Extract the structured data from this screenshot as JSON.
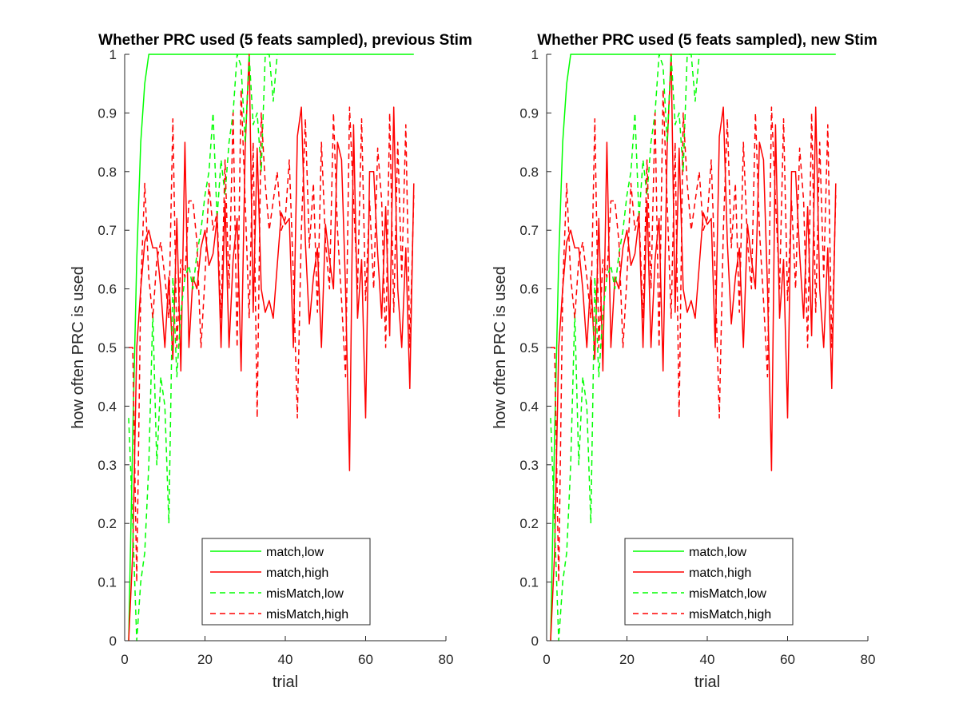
{
  "figure": {
    "background": "#ffffff"
  },
  "chart_data": [
    {
      "type": "line",
      "title": "Whether PRC used (5 feats sampled), previous Stim",
      "xlabel": "trial",
      "ylabel": "how often PRC is used",
      "xlim": [
        0,
        80
      ],
      "ylim": [
        0,
        1
      ],
      "xticks": [
        "0",
        "20",
        "40",
        "60",
        "80"
      ],
      "yticks": [
        "0",
        "0.1",
        "0.2",
        "0.3",
        "0.4",
        "0.5",
        "0.6",
        "0.7",
        "0.8",
        "0.9",
        "1"
      ],
      "grid": false,
      "legend_position": "bottom-center",
      "series": [
        {
          "name": "match,low",
          "color": "#00ff00",
          "style": "solid",
          "x": [
            1,
            2,
            3,
            4,
            5,
            6,
            10,
            20,
            30,
            40,
            50,
            60,
            72
          ],
          "y": [
            0,
            0.35,
            0.65,
            0.85,
            0.95,
            1,
            1,
            1,
            1,
            1,
            1,
            1,
            1
          ]
        },
        {
          "name": "match,high",
          "color": "#ff0000",
          "style": "solid",
          "x": [
            1,
            2,
            3,
            4,
            5,
            6,
            7,
            8,
            9,
            10,
            11,
            12,
            13,
            14,
            15,
            16,
            17,
            18,
            19,
            20,
            21,
            22,
            23,
            24,
            25,
            26,
            27,
            28,
            29,
            30,
            31,
            32,
            33,
            34,
            35,
            36,
            37,
            38,
            39,
            40,
            41,
            42,
            43,
            44,
            45,
            46,
            47,
            48,
            49,
            50,
            51,
            52,
            53,
            54,
            55,
            56,
            57,
            58,
            59,
            60,
            61,
            62,
            63,
            64,
            65,
            66,
            67,
            68,
            69,
            70,
            71,
            72
          ],
          "y": [
            0,
            0.15,
            0.5,
            0.6,
            0.68,
            0.7,
            0.67,
            0.67,
            0.6,
            0.5,
            0.62,
            0.48,
            0.72,
            0.46,
            0.85,
            0.5,
            0.62,
            0.6,
            0.67,
            0.7,
            0.64,
            0.66,
            0.72,
            0.5,
            0.75,
            0.5,
            0.65,
            0.72,
            0.46,
            0.84,
            1,
            0.56,
            0.84,
            0.6,
            0.56,
            0.58,
            0.55,
            0.64,
            0.73,
            0.71,
            0.72,
            0.5,
            0.86,
            0.91,
            0.68,
            0.54,
            0.62,
            0.67,
            0.5,
            0.71,
            0.65,
            0.6,
            0.85,
            0.82,
            0.6,
            0.29,
            0.88,
            0.55,
            0.65,
            0.38,
            0.8,
            0.8,
            0.66,
            0.55,
            0.74,
            0.52,
            0.91,
            0.6,
            0.5,
            0.67,
            0.43,
            0.78
          ]
        },
        {
          "name": "misMatch,low",
          "color": "#00ff00",
          "style": "dashed",
          "x": [
            1,
            2,
            3,
            4,
            5,
            6,
            7,
            8,
            9,
            10,
            11,
            12,
            13,
            14,
            15,
            16,
            17,
            18,
            19,
            20,
            21,
            22,
            23,
            24,
            25,
            26,
            27,
            28,
            29,
            30,
            31,
            32,
            33,
            34,
            35,
            36,
            37,
            38
          ],
          "y": [
            0.38,
            0.2,
            0,
            0.1,
            0.15,
            0.3,
            0.56,
            0.3,
            0.45,
            0.4,
            0.2,
            0.62,
            0.45,
            0.56,
            0.62,
            0.64,
            0.6,
            0.66,
            0.7,
            0.76,
            0.8,
            0.9,
            0.72,
            0.82,
            0.76,
            0.85,
            0.9,
            1,
            0.98,
            0.85,
            1,
            0.88,
            0.9,
            0.8,
            1,
            1,
            0.92,
            1
          ]
        },
        {
          "name": "misMatch,high",
          "color": "#ff0000",
          "style": "dashed",
          "x": [
            1,
            2,
            3,
            4,
            5,
            6,
            7,
            8,
            9,
            10,
            11,
            12,
            13,
            14,
            15,
            16,
            17,
            18,
            19,
            20,
            21,
            22,
            23,
            24,
            25,
            26,
            27,
            28,
            29,
            30,
            31,
            32,
            33,
            34,
            35,
            36,
            37,
            38,
            39,
            40,
            41,
            42,
            43,
            44,
            45,
            46,
            47,
            48,
            49,
            50,
            51,
            52,
            53,
            54,
            55,
            56,
            57,
            58,
            59,
            60,
            61,
            62,
            63,
            64,
            65,
            66,
            67,
            68,
            69,
            70,
            71,
            72
          ],
          "y": [
            0.5,
            0.5,
            0.1,
            0.6,
            0.78,
            0.62,
            0.55,
            0.65,
            0.68,
            0.62,
            0.55,
            0.89,
            0.5,
            0.65,
            0.62,
            0.75,
            0.75,
            0.68,
            0.5,
            0.62,
            0.78,
            0.7,
            0.73,
            0.55,
            0.82,
            0.6,
            0.9,
            0.5,
            0.94,
            0.75,
            0.55,
            0.85,
            0.38,
            0.9,
            0.78,
            0.7,
            0.75,
            0.8,
            0.7,
            0.72,
            0.82,
            0.62,
            0.38,
            0.7,
            0.89,
            0.67,
            0.78,
            0.56,
            0.85,
            0.68,
            0.6,
            0.9,
            0.7,
            0.58,
            0.45,
            0.91,
            0.75,
            0.6,
            0.89,
            0.58,
            0.75,
            0.6,
            0.84,
            0.75,
            0.5,
            0.9,
            0.56,
            0.85,
            0.62,
            0.88,
            0.5,
            0.76
          ]
        }
      ]
    },
    {
      "type": "line",
      "title": "Whether PRC used (5 feats sampled), new Stim",
      "xlabel": "trial",
      "ylabel": "how often PRC is used",
      "xlim": [
        0,
        80
      ],
      "ylim": [
        0,
        1
      ],
      "xticks": [
        "0",
        "20",
        "40",
        "60",
        "80"
      ],
      "yticks": [
        "0",
        "0.1",
        "0.2",
        "0.3",
        "0.4",
        "0.5",
        "0.6",
        "0.7",
        "0.8",
        "0.9",
        "1"
      ],
      "grid": false,
      "legend_position": "bottom-center",
      "series": [
        {
          "name": "match,low",
          "color": "#00ff00",
          "style": "solid",
          "x": [
            1,
            2,
            3,
            4,
            5,
            6,
            10,
            20,
            30,
            40,
            50,
            60,
            72
          ],
          "y": [
            0,
            0.35,
            0.65,
            0.85,
            0.95,
            1,
            1,
            1,
            1,
            1,
            1,
            1,
            1
          ]
        },
        {
          "name": "match,high",
          "color": "#ff0000",
          "style": "solid",
          "x": [
            1,
            2,
            3,
            4,
            5,
            6,
            7,
            8,
            9,
            10,
            11,
            12,
            13,
            14,
            15,
            16,
            17,
            18,
            19,
            20,
            21,
            22,
            23,
            24,
            25,
            26,
            27,
            28,
            29,
            30,
            31,
            32,
            33,
            34,
            35,
            36,
            37,
            38,
            39,
            40,
            41,
            42,
            43,
            44,
            45,
            46,
            47,
            48,
            49,
            50,
            51,
            52,
            53,
            54,
            55,
            56,
            57,
            58,
            59,
            60,
            61,
            62,
            63,
            64,
            65,
            66,
            67,
            68,
            69,
            70,
            71,
            72
          ],
          "y": [
            0,
            0.15,
            0.5,
            0.6,
            0.68,
            0.7,
            0.67,
            0.67,
            0.6,
            0.5,
            0.62,
            0.48,
            0.72,
            0.46,
            0.85,
            0.5,
            0.62,
            0.6,
            0.67,
            0.7,
            0.64,
            0.66,
            0.72,
            0.5,
            0.75,
            0.5,
            0.65,
            0.72,
            0.46,
            0.84,
            1,
            0.56,
            0.84,
            0.6,
            0.56,
            0.58,
            0.55,
            0.64,
            0.73,
            0.71,
            0.72,
            0.5,
            0.86,
            0.91,
            0.68,
            0.54,
            0.62,
            0.67,
            0.5,
            0.71,
            0.65,
            0.6,
            0.85,
            0.82,
            0.6,
            0.29,
            0.88,
            0.55,
            0.65,
            0.38,
            0.8,
            0.8,
            0.66,
            0.55,
            0.74,
            0.52,
            0.91,
            0.6,
            0.5,
            0.67,
            0.43,
            0.78
          ]
        },
        {
          "name": "misMatch,low",
          "color": "#00ff00",
          "style": "dashed",
          "x": [
            1,
            2,
            3,
            4,
            5,
            6,
            7,
            8,
            9,
            10,
            11,
            12,
            13,
            14,
            15,
            16,
            17,
            18,
            19,
            20,
            21,
            22,
            23,
            24,
            25,
            26,
            27,
            28,
            29,
            30,
            31,
            32,
            33,
            34,
            35,
            36,
            37,
            38
          ],
          "y": [
            0.38,
            0.2,
            0,
            0.1,
            0.15,
            0.3,
            0.56,
            0.3,
            0.45,
            0.4,
            0.2,
            0.62,
            0.45,
            0.56,
            0.62,
            0.64,
            0.6,
            0.66,
            0.7,
            0.76,
            0.8,
            0.9,
            0.72,
            0.82,
            0.76,
            0.85,
            0.9,
            1,
            0.98,
            0.85,
            1,
            0.88,
            0.9,
            0.8,
            1,
            1,
            0.92,
            1
          ]
        },
        {
          "name": "misMatch,high",
          "color": "#ff0000",
          "style": "dashed",
          "x": [
            1,
            2,
            3,
            4,
            5,
            6,
            7,
            8,
            9,
            10,
            11,
            12,
            13,
            14,
            15,
            16,
            17,
            18,
            19,
            20,
            21,
            22,
            23,
            24,
            25,
            26,
            27,
            28,
            29,
            30,
            31,
            32,
            33,
            34,
            35,
            36,
            37,
            38,
            39,
            40,
            41,
            42,
            43,
            44,
            45,
            46,
            47,
            48,
            49,
            50,
            51,
            52,
            53,
            54,
            55,
            56,
            57,
            58,
            59,
            60,
            61,
            62,
            63,
            64,
            65,
            66,
            67,
            68,
            69,
            70,
            71,
            72
          ],
          "y": [
            0.5,
            0.5,
            0.1,
            0.6,
            0.78,
            0.62,
            0.55,
            0.65,
            0.68,
            0.62,
            0.55,
            0.89,
            0.5,
            0.65,
            0.62,
            0.75,
            0.75,
            0.68,
            0.5,
            0.62,
            0.78,
            0.7,
            0.73,
            0.55,
            0.82,
            0.6,
            0.9,
            0.5,
            0.94,
            0.75,
            0.55,
            0.85,
            0.38,
            0.9,
            0.78,
            0.7,
            0.75,
            0.8,
            0.7,
            0.72,
            0.82,
            0.62,
            0.38,
            0.7,
            0.89,
            0.67,
            0.78,
            0.56,
            0.85,
            0.68,
            0.6,
            0.9,
            0.7,
            0.58,
            0.45,
            0.91,
            0.75,
            0.6,
            0.89,
            0.58,
            0.75,
            0.6,
            0.84,
            0.75,
            0.5,
            0.9,
            0.56,
            0.85,
            0.62,
            0.88,
            0.5,
            0.76
          ]
        }
      ]
    }
  ]
}
